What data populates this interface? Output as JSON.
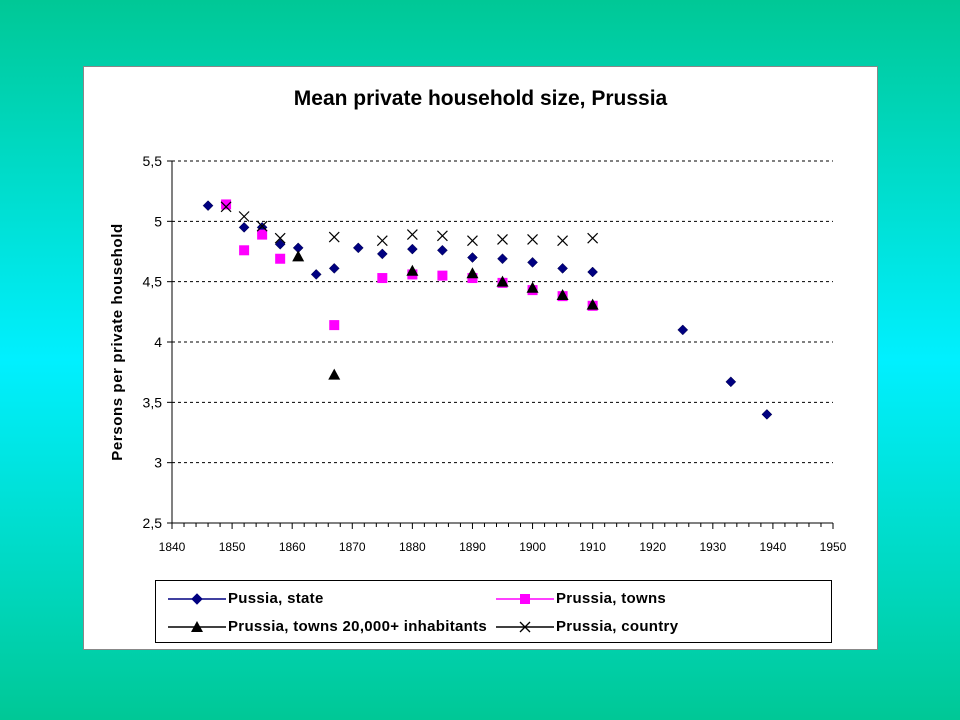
{
  "chart_data": {
    "type": "scatter",
    "title": "Mean private household size, Prussia",
    "ylabel": "Persons per private household",
    "xlabel": "",
    "xlim": [
      1840,
      1950
    ],
    "ylim": [
      2.5,
      5.5
    ],
    "x_ticks": [
      "1840",
      "1850",
      "1860",
      "1870",
      "1880",
      "1890",
      "1900",
      "1910",
      "1920",
      "1930",
      "1940",
      "1950"
    ],
    "y_ticks": [
      "2,5",
      "3",
      "3,5",
      "4",
      "4,5",
      "5",
      "5,5"
    ],
    "gridlines": "horizontal dashed",
    "legend_position": "bottom",
    "series": [
      {
        "name": "Pussia, state",
        "marker": "diamond",
        "color": "#000080",
        "points": [
          [
            1846,
            5.13
          ],
          [
            1852,
            4.95
          ],
          [
            1855,
            4.95
          ],
          [
            1858,
            4.81
          ],
          [
            1861,
            4.78
          ],
          [
            1864,
            4.56
          ],
          [
            1867,
            4.61
          ],
          [
            1871,
            4.78
          ],
          [
            1875,
            4.73
          ],
          [
            1880,
            4.77
          ],
          [
            1885,
            4.76
          ],
          [
            1890,
            4.7
          ],
          [
            1895,
            4.69
          ],
          [
            1900,
            4.66
          ],
          [
            1905,
            4.61
          ],
          [
            1910,
            4.58
          ],
          [
            1925,
            4.1
          ],
          [
            1933,
            3.67
          ],
          [
            1939,
            3.4
          ]
        ]
      },
      {
        "name": "Prussia, towns",
        "marker": "square",
        "color": "#ff00ff",
        "points": [
          [
            1849,
            5.14
          ],
          [
            1852,
            4.76
          ],
          [
            1855,
            4.89
          ],
          [
            1858,
            4.69
          ],
          [
            1867,
            4.14
          ],
          [
            1875,
            4.53
          ],
          [
            1880,
            4.56
          ],
          [
            1885,
            4.55
          ],
          [
            1890,
            4.53
          ],
          [
            1895,
            4.49
          ],
          [
            1900,
            4.43
          ],
          [
            1905,
            4.38
          ],
          [
            1910,
            4.3
          ]
        ]
      },
      {
        "name": "Prussia, towns 20,000+ inhabitants",
        "marker": "triangle",
        "color": "#000000",
        "points": [
          [
            1861,
            4.71
          ],
          [
            1867,
            3.73
          ],
          [
            1880,
            4.59
          ],
          [
            1890,
            4.57
          ],
          [
            1895,
            4.5
          ],
          [
            1900,
            4.45
          ],
          [
            1905,
            4.39
          ],
          [
            1910,
            4.31
          ]
        ]
      },
      {
        "name": "Prussia, country",
        "marker": "x",
        "color": "#000000",
        "points": [
          [
            1849,
            5.12
          ],
          [
            1852,
            5.04
          ],
          [
            1855,
            4.96
          ],
          [
            1858,
            4.86
          ],
          [
            1867,
            4.87
          ],
          [
            1875,
            4.84
          ],
          [
            1880,
            4.89
          ],
          [
            1885,
            4.88
          ],
          [
            1890,
            4.84
          ],
          [
            1895,
            4.85
          ],
          [
            1900,
            4.85
          ],
          [
            1905,
            4.84
          ],
          [
            1910,
            4.86
          ]
        ]
      }
    ]
  }
}
